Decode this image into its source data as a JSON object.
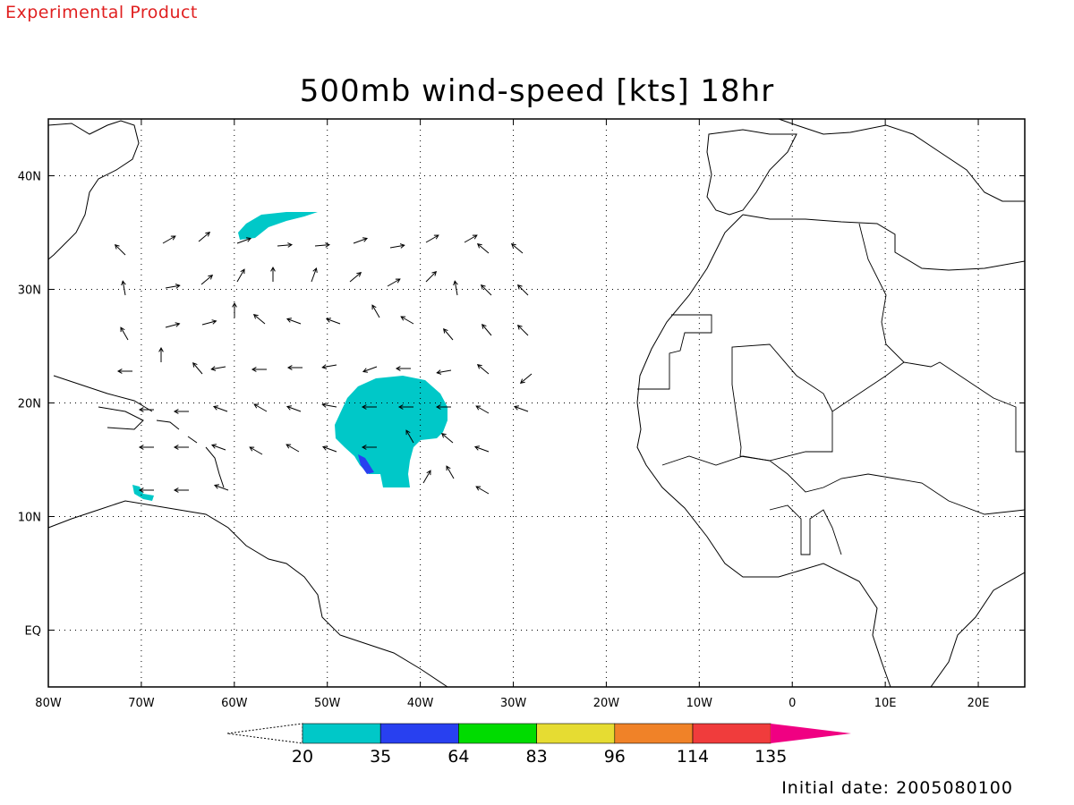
{
  "header": {
    "product_note": "Experimental Product"
  },
  "title": "500mb wind-speed [kts] 18hr",
  "footer": {
    "label": "Initial date:",
    "date": "2005080100",
    "text": "Initial date: 2005080100"
  },
  "map": {
    "lon_range": [
      -80,
      25
    ],
    "lat_range": [
      -5,
      45
    ],
    "x_ticks": [
      "80W",
      "70W",
      "60W",
      "50W",
      "40W",
      "30W",
      "20W",
      "10W",
      "0",
      "10E",
      "20E"
    ],
    "y_ticks": [
      "EQ",
      "10N",
      "20N",
      "30N",
      "40N"
    ],
    "grid": "dotted"
  },
  "colorbar": {
    "levels": [
      "20",
      "35",
      "64",
      "83",
      "96",
      "114",
      "135"
    ],
    "colors": [
      "#00c8c8",
      "#2840f0",
      "#00dc00",
      "#e6dc32",
      "#f08228",
      "#f03c3c",
      "#f00082"
    ]
  },
  "wind_vectors_note": ""
}
